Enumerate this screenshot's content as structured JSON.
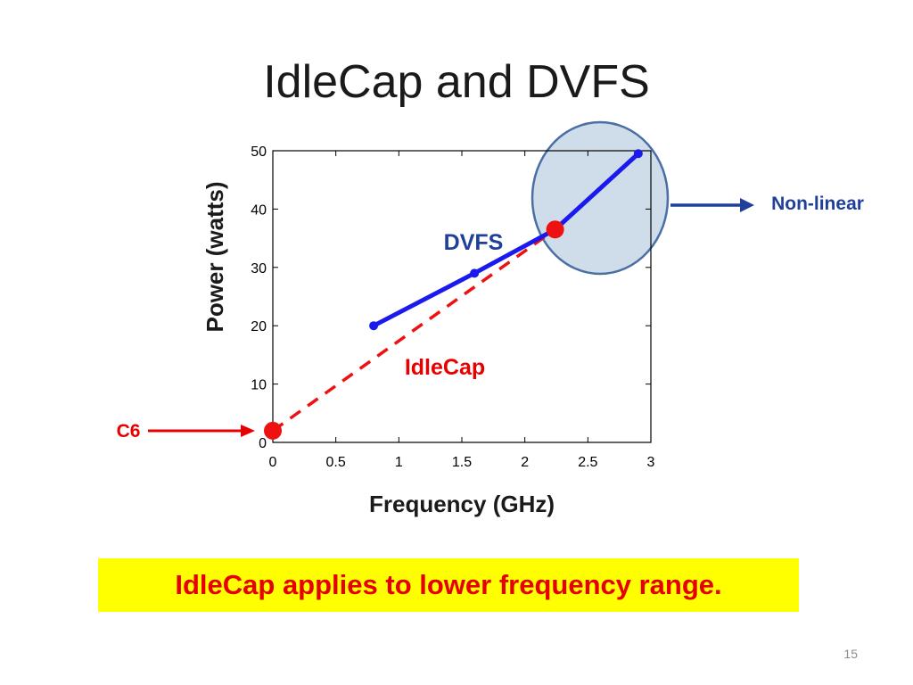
{
  "slide": {
    "title": "IdleCap and DVFS",
    "caption": "IdleCap applies to lower frequency range.",
    "page_number": "15"
  },
  "colors": {
    "dvfs": "#1a1aee",
    "idlecap": "#ee1111",
    "annotation_blue": "#1f3f99",
    "circle_fill": "#cfdcea",
    "circle_stroke": "#4a6fa5",
    "caption_bg": "#ffff00"
  },
  "annotations": {
    "dvfs_label": "DVFS",
    "idlecap_label": "IdleCap",
    "c6_label": "C6",
    "nonlinear_label": "Non-linear"
  },
  "chart_data": {
    "type": "line",
    "xlabel": "Frequency (GHz)",
    "ylabel": "Power (watts)",
    "xlim": [
      0,
      3
    ],
    "ylim": [
      0,
      50
    ],
    "xticks": [
      0,
      0.5,
      1,
      1.5,
      2,
      2.5,
      3
    ],
    "xtick_labels": [
      "0",
      "0.5",
      "1",
      "1.5",
      "2",
      "2.5",
      "3"
    ],
    "yticks": [
      0,
      10,
      20,
      30,
      40,
      50
    ],
    "ytick_labels": [
      "0",
      "10",
      "20",
      "30",
      "40",
      "50"
    ],
    "grid": false,
    "series": [
      {
        "name": "DVFS",
        "style": "solid",
        "color": "#1a1aee",
        "points": [
          [
            0.8,
            20
          ],
          [
            1.6,
            29
          ],
          [
            2.24,
            36.5
          ],
          [
            2.9,
            49.5
          ]
        ]
      },
      {
        "name": "IdleCap",
        "style": "dashed",
        "color": "#ee1111",
        "points": [
          [
            0,
            2
          ],
          [
            2.24,
            36.5
          ]
        ]
      }
    ],
    "highlight_points": [
      {
        "name": "C6",
        "x": 0,
        "y": 2,
        "color": "#ee1111"
      },
      {
        "name": "DVFS/IdleCap junction",
        "x": 2.24,
        "y": 36.5,
        "color": "#ee1111"
      }
    ]
  }
}
